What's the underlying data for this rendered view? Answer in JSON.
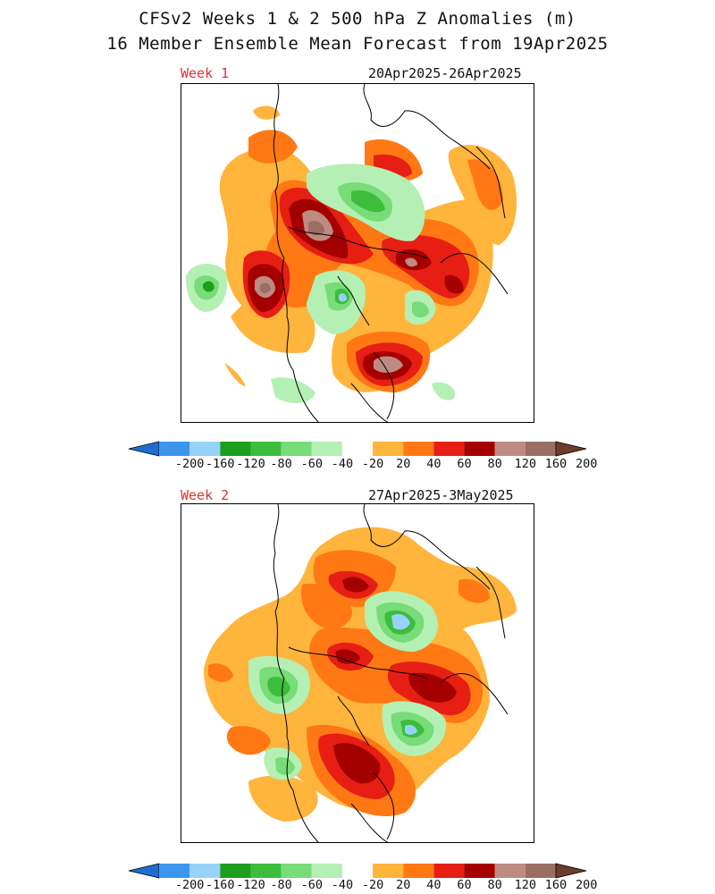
{
  "title": {
    "line1": "CFSv2 Weeks 1 & 2 500 hPa Z Anomalies (m)",
    "line2": "16 Member Ensemble Mean Forecast from 19Apr2025"
  },
  "panels": [
    {
      "week_label": "Week 1",
      "date_range": "20Apr2025-26Apr2025"
    },
    {
      "week_label": "Week 2",
      "date_range": "27Apr2025-3May2025"
    }
  ],
  "colorbar": {
    "labels": [
      "-200",
      "-160",
      "-120",
      "-80",
      "-60",
      "-40",
      "-20",
      "20",
      "40",
      "60",
      "80",
      "120",
      "160",
      "200"
    ],
    "colors": [
      "#1e6ed2",
      "#3c96ec",
      "#96d2fa",
      "#1e9e1e",
      "#3cbe3c",
      "#78dc78",
      "#b4f0b4",
      "#ffffff",
      "#ffb43c",
      "#ff7814",
      "#e61e14",
      "#a50000",
      "#bd8b82",
      "#9b6e64",
      "#6e3c2a"
    ]
  }
}
